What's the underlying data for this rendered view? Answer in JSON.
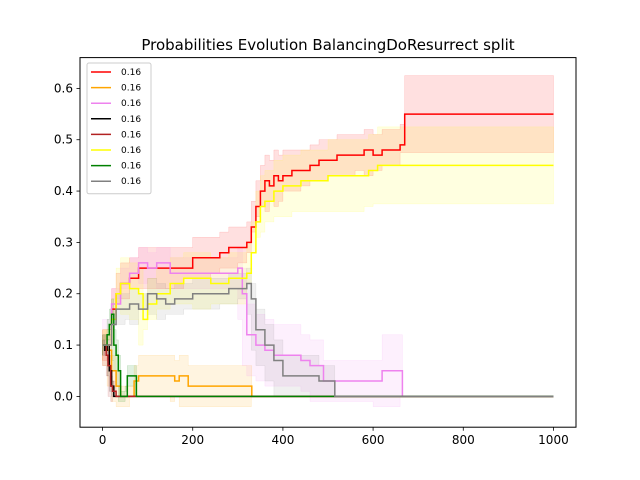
{
  "chart_data": {
    "type": "line",
    "title": "Probabilities Evolution BalancingDoResurrect split",
    "xlabel": "",
    "ylabel": "",
    "xlim": [
      -50,
      1050
    ],
    "ylim": [
      -0.06,
      0.66
    ],
    "x_ticks": [
      0,
      200,
      400,
      600,
      800,
      1000
    ],
    "y_ticks": [
      0.0,
      0.1,
      0.2,
      0.3,
      0.4,
      0.5,
      0.6
    ],
    "grid": false,
    "legend_position": "top-left",
    "series": [
      {
        "name": "0.16",
        "color": "#ff0000",
        "points": [
          [
            0,
            0.1
          ],
          [
            10,
            0.1
          ],
          [
            20,
            0.17
          ],
          [
            30,
            0.2
          ],
          [
            40,
            0.22
          ],
          [
            60,
            0.23
          ],
          [
            80,
            0.25
          ],
          [
            100,
            0.25
          ],
          [
            120,
            0.25
          ],
          [
            150,
            0.25
          ],
          [
            180,
            0.25
          ],
          [
            200,
            0.27
          ],
          [
            220,
            0.27
          ],
          [
            240,
            0.27
          ],
          [
            260,
            0.28
          ],
          [
            280,
            0.29
          ],
          [
            300,
            0.29
          ],
          [
            320,
            0.3
          ],
          [
            330,
            0.33
          ],
          [
            340,
            0.37
          ],
          [
            350,
            0.4
          ],
          [
            360,
            0.42
          ],
          [
            370,
            0.41
          ],
          [
            380,
            0.43
          ],
          [
            390,
            0.42
          ],
          [
            400,
            0.43
          ],
          [
            420,
            0.44
          ],
          [
            440,
            0.44
          ],
          [
            460,
            0.45
          ],
          [
            480,
            0.46
          ],
          [
            500,
            0.46
          ],
          [
            520,
            0.47
          ],
          [
            560,
            0.47
          ],
          [
            580,
            0.48
          ],
          [
            600,
            0.47
          ],
          [
            620,
            0.48
          ],
          [
            660,
            0.49
          ],
          [
            670,
            0.55
          ],
          [
            1000,
            0.55
          ]
        ],
        "band": [
          0.03,
          0.03,
          0.04,
          0.04,
          0.04,
          0.04,
          0.04,
          0.04,
          0.04,
          0.04,
          0.04,
          0.04,
          0.04,
          0.04,
          0.04,
          0.04,
          0.04,
          0.04,
          0.05,
          0.05,
          0.05,
          0.05,
          0.05,
          0.05,
          0.05,
          0.05,
          0.04,
          0.04,
          0.04,
          0.04,
          0.04,
          0.04,
          0.04,
          0.04,
          0.04,
          0.04,
          0.04,
          0.075,
          0.075
        ]
      },
      {
        "name": "0.16",
        "color": "#ffa500",
        "points": [
          [
            0,
            0.1
          ],
          [
            10,
            0.09
          ],
          [
            20,
            0.05
          ],
          [
            30,
            0.02
          ],
          [
            40,
            0.0
          ],
          [
            60,
            0.0
          ],
          [
            70,
            0.03
          ],
          [
            80,
            0.04
          ],
          [
            100,
            0.04
          ],
          [
            120,
            0.04
          ],
          [
            150,
            0.04
          ],
          [
            160,
            0.03
          ],
          [
            170,
            0.04
          ],
          [
            190,
            0.02
          ],
          [
            330,
            0.02
          ],
          [
            331,
            0.0
          ],
          [
            1000,
            0.0
          ]
        ],
        "band": [
          0.03,
          0.03,
          0.03,
          0.03,
          0.02,
          0.02,
          0.03,
          0.04,
          0.04,
          0.04,
          0.04,
          0.04,
          0.04,
          0.04,
          0.04,
          0.0,
          0.0
        ]
      },
      {
        "name": "0.16",
        "color": "#ee82ee",
        "points": [
          [
            0,
            0.1
          ],
          [
            20,
            0.18
          ],
          [
            40,
            0.22
          ],
          [
            60,
            0.24
          ],
          [
            80,
            0.26
          ],
          [
            100,
            0.25
          ],
          [
            120,
            0.26
          ],
          [
            150,
            0.24
          ],
          [
            180,
            0.24
          ],
          [
            200,
            0.24
          ],
          [
            240,
            0.24
          ],
          [
            280,
            0.24
          ],
          [
            300,
            0.25
          ],
          [
            310,
            0.2
          ],
          [
            320,
            0.12
          ],
          [
            340,
            0.1
          ],
          [
            360,
            0.09
          ],
          [
            380,
            0.08
          ],
          [
            420,
            0.08
          ],
          [
            440,
            0.07
          ],
          [
            460,
            0.06
          ],
          [
            490,
            0.03
          ],
          [
            530,
            0.03
          ],
          [
            560,
            0.03
          ],
          [
            600,
            0.03
          ],
          [
            620,
            0.05
          ],
          [
            660,
            0.05
          ],
          [
            665,
            0.0
          ],
          [
            1000,
            0.0
          ]
        ],
        "band": [
          0.03,
          0.03,
          0.03,
          0.03,
          0.03,
          0.03,
          0.03,
          0.03,
          0.03,
          0.03,
          0.03,
          0.03,
          0.04,
          0.05,
          0.06,
          0.06,
          0.06,
          0.06,
          0.06,
          0.05,
          0.05,
          0.04,
          0.04,
          0.04,
          0.04,
          0.07,
          0.07,
          0.0,
          0.0
        ]
      },
      {
        "name": "0.16",
        "color": "#000000",
        "points": [
          [
            0,
            0.1
          ],
          [
            5,
            0.09
          ],
          [
            10,
            0.1
          ],
          [
            15,
            0.05
          ],
          [
            20,
            0.02
          ],
          [
            25,
            0.0
          ],
          [
            1000,
            0.0
          ]
        ],
        "band": [
          0.01,
          0.01,
          0.01,
          0.01,
          0.01,
          0.0,
          0.0
        ]
      },
      {
        "name": "0.16",
        "color": "#b22222",
        "points": [
          [
            0,
            0.1
          ],
          [
            8,
            0.08
          ],
          [
            12,
            0.06
          ],
          [
            18,
            0.02
          ],
          [
            22,
            0.01
          ],
          [
            30,
            0.0
          ],
          [
            1000,
            0.0
          ]
        ],
        "band": [
          0.02,
          0.02,
          0.02,
          0.02,
          0.02,
          0.0,
          0.0
        ]
      },
      {
        "name": "0.16",
        "color": "#ffff00",
        "points": [
          [
            0,
            0.1
          ],
          [
            20,
            0.15
          ],
          [
            30,
            0.2
          ],
          [
            40,
            0.22
          ],
          [
            60,
            0.21
          ],
          [
            80,
            0.2
          ],
          [
            90,
            0.15
          ],
          [
            100,
            0.18
          ],
          [
            120,
            0.2
          ],
          [
            150,
            0.22
          ],
          [
            180,
            0.23
          ],
          [
            200,
            0.23
          ],
          [
            240,
            0.22
          ],
          [
            280,
            0.23
          ],
          [
            300,
            0.23
          ],
          [
            320,
            0.24
          ],
          [
            330,
            0.28
          ],
          [
            340,
            0.34
          ],
          [
            350,
            0.37
          ],
          [
            360,
            0.38
          ],
          [
            380,
            0.4
          ],
          [
            400,
            0.41
          ],
          [
            420,
            0.41
          ],
          [
            440,
            0.42
          ],
          [
            460,
            0.42
          ],
          [
            480,
            0.42
          ],
          [
            500,
            0.43
          ],
          [
            580,
            0.43
          ],
          [
            590,
            0.44
          ],
          [
            600,
            0.44
          ],
          [
            610,
            0.45
          ],
          [
            1000,
            0.45
          ]
        ],
        "band": [
          0.03,
          0.04,
          0.05,
          0.05,
          0.05,
          0.05,
          0.05,
          0.05,
          0.05,
          0.05,
          0.05,
          0.05,
          0.05,
          0.05,
          0.05,
          0.06,
          0.06,
          0.06,
          0.06,
          0.06,
          0.06,
          0.06,
          0.06,
          0.06,
          0.06,
          0.06,
          0.07,
          0.07,
          0.07,
          0.07,
          0.075,
          0.075
        ]
      },
      {
        "name": "0.16",
        "color": "#008000",
        "points": [
          [
            0,
            0.1
          ],
          [
            10,
            0.12
          ],
          [
            15,
            0.14
          ],
          [
            20,
            0.16
          ],
          [
            25,
            0.1
          ],
          [
            30,
            0.08
          ],
          [
            35,
            0.05
          ],
          [
            40,
            0.0
          ],
          [
            50,
            0.0
          ],
          [
            55,
            0.04
          ],
          [
            60,
            0.04
          ],
          [
            70,
            0.04
          ],
          [
            75,
            0.0
          ],
          [
            1000,
            0.0
          ]
        ],
        "band": [
          0.02,
          0.03,
          0.03,
          0.03,
          0.03,
          0.03,
          0.03,
          0.01,
          0.01,
          0.02,
          0.02,
          0.02,
          0.0,
          0.0
        ]
      },
      {
        "name": "0.16",
        "color": "#808080",
        "points": [
          [
            0,
            0.1
          ],
          [
            20,
            0.14
          ],
          [
            30,
            0.17
          ],
          [
            50,
            0.17
          ],
          [
            60,
            0.18
          ],
          [
            80,
            0.17
          ],
          [
            100,
            0.2
          ],
          [
            120,
            0.19
          ],
          [
            140,
            0.18
          ],
          [
            160,
            0.19
          ],
          [
            180,
            0.19
          ],
          [
            200,
            0.2
          ],
          [
            240,
            0.2
          ],
          [
            260,
            0.2
          ],
          [
            280,
            0.21
          ],
          [
            300,
            0.21
          ],
          [
            320,
            0.22
          ],
          [
            330,
            0.19
          ],
          [
            340,
            0.13
          ],
          [
            360,
            0.1
          ],
          [
            380,
            0.07
          ],
          [
            400,
            0.04
          ],
          [
            430,
            0.04
          ],
          [
            460,
            0.04
          ],
          [
            480,
            0.03
          ],
          [
            510,
            0.03
          ],
          [
            515,
            0.0
          ],
          [
            1000,
            0.0
          ]
        ],
        "band": [
          0.02,
          0.03,
          0.03,
          0.03,
          0.03,
          0.03,
          0.03,
          0.03,
          0.03,
          0.03,
          0.03,
          0.03,
          0.03,
          0.03,
          0.03,
          0.03,
          0.03,
          0.03,
          0.04,
          0.04,
          0.04,
          0.04,
          0.04,
          0.04,
          0.03,
          0.03,
          0.0,
          0.0
        ]
      }
    ]
  }
}
